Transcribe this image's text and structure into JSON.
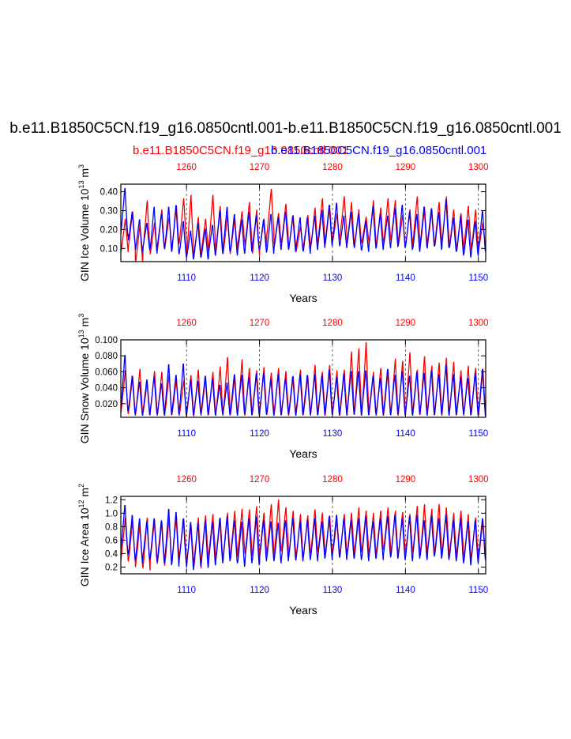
{
  "title": "b.e11.B1850C5CN.f19_g16.0850cntl.001-b.e11.B1850C5CN.f19_g16.0850cntl.001",
  "run_a_label": "b.e11.B1850C5CN.f19_g16.0850cntl.001",
  "run_b_label": "b.e11.B1850C5CN.f19_g16.0850cntl.001",
  "colors": {
    "run_a": "#ff0000",
    "run_b": "#0000ff",
    "axis": "#000000"
  },
  "chart_data": [
    {
      "type": "line",
      "title": "GIN Ice Volume",
      "ylabel": "GIN Ice Volume 10^13 m^3",
      "ylabel_base": "GIN Ice Volume 10",
      "ylabel_exp": "13",
      "ylabel_unit": " m",
      "ylabel_unit_exp": "3",
      "xlabel": "Years",
      "bottom_axis": {
        "range": [
          1101,
          1151
        ],
        "ticks": [
          1110,
          1120,
          1130,
          1140,
          1150
        ],
        "color": "#0000ff"
      },
      "top_axis": {
        "range": [
          1251,
          1301
        ],
        "ticks": [
          1260,
          1270,
          1280,
          1290,
          1300
        ],
        "color": "#ff0000"
      },
      "ylim": [
        0.03,
        0.44
      ],
      "yticks": [
        0.1,
        0.2,
        0.3,
        0.4
      ],
      "ytick_labels": [
        "0.10",
        "0.20",
        "0.30",
        "0.40"
      ],
      "series": [
        {
          "name": "b.e11.B1850C5CN.f19_g16.0850cntl.001 (years 1251-1301)",
          "color": "#ff0000",
          "annual_max": [
            0.26,
            0.3,
            0.23,
            0.36,
            0.24,
            0.31,
            0.27,
            0.33,
            0.37,
            0.39,
            0.27,
            0.26,
            0.39,
            0.33,
            0.28,
            0.26,
            0.3,
            0.35,
            0.31,
            0.26,
            0.42,
            0.29,
            0.34,
            0.28,
            0.22,
            0.28,
            0.32,
            0.37,
            0.33,
            0.29,
            0.38,
            0.35,
            0.31,
            0.27,
            0.36,
            0.32,
            0.37,
            0.36,
            0.28,
            0.31,
            0.38,
            0.32,
            0.31,
            0.35,
            0.38,
            0.31,
            0.29,
            0.33,
            0.31,
            0.24
          ],
          "annual_min": [
            0.08,
            0.1,
            0.02,
            0.08,
            0.06,
            0.09,
            0.1,
            0.1,
            0.13,
            0.06,
            0.05,
            0.08,
            0.1,
            0.07,
            0.07,
            0.08,
            0.12,
            0.11,
            0.06,
            0.09,
            0.17,
            0.12,
            0.13,
            0.1,
            0.08,
            0.11,
            0.1,
            0.14,
            0.12,
            0.13,
            0.16,
            0.12,
            0.11,
            0.13,
            0.12,
            0.11,
            0.13,
            0.14,
            0.11,
            0.11,
            0.13,
            0.1,
            0.11,
            0.12,
            0.13,
            0.1,
            0.09,
            0.11,
            0.08,
            0.09
          ]
        },
        {
          "name": "b.e11.B1850C5CN.f19_g16.0850cntl.001 (years 1101-1151)",
          "color": "#0000ff",
          "annual_max": [
            0.43,
            0.3,
            0.26,
            0.24,
            0.33,
            0.29,
            0.33,
            0.34,
            0.25,
            0.2,
            0.24,
            0.21,
            0.23,
            0.31,
            0.33,
            0.29,
            0.26,
            0.3,
            0.28,
            0.26,
            0.29,
            0.27,
            0.3,
            0.28,
            0.27,
            0.27,
            0.28,
            0.31,
            0.34,
            0.35,
            0.28,
            0.3,
            0.29,
            0.25,
            0.33,
            0.29,
            0.28,
            0.32,
            0.34,
            0.3,
            0.29,
            0.33,
            0.32,
            0.3,
            0.37,
            0.27,
            0.28,
            0.26,
            0.25,
            0.31
          ],
          "annual_min": [
            0.16,
            0.12,
            0.08,
            0.09,
            0.07,
            0.1,
            0.08,
            0.07,
            0.06,
            0.04,
            0.05,
            0.04,
            0.06,
            0.07,
            0.08,
            0.06,
            0.07,
            0.08,
            0.09,
            0.08,
            0.07,
            0.09,
            0.1,
            0.08,
            0.09,
            0.07,
            0.09,
            0.1,
            0.11,
            0.12,
            0.1,
            0.11,
            0.09,
            0.08,
            0.1,
            0.09,
            0.1,
            0.11,
            0.1,
            0.09,
            0.08,
            0.1,
            0.11,
            0.09,
            0.1,
            0.08,
            0.06,
            0.05,
            0.06,
            0.08
          ]
        }
      ]
    },
    {
      "type": "line",
      "title": "GIN Snow Volume",
      "ylabel": "GIN Snow Volume 10^13 m^3",
      "ylabel_base": "GIN Snow Volume 10",
      "ylabel_exp": "13",
      "ylabel_unit": " m",
      "ylabel_unit_exp": "3",
      "xlabel": "Years",
      "bottom_axis": {
        "range": [
          1101,
          1151
        ],
        "ticks": [
          1110,
          1120,
          1130,
          1140,
          1150
        ],
        "color": "#0000ff"
      },
      "top_axis": {
        "range": [
          1251,
          1301
        ],
        "ticks": [
          1260,
          1270,
          1280,
          1290,
          1300
        ],
        "color": "#ff0000"
      },
      "ylim": [
        0.003,
        0.1
      ],
      "yticks": [
        0.02,
        0.04,
        0.06,
        0.08,
        0.1
      ],
      "ytick_labels": [
        "0.020",
        "0.040",
        "0.060",
        "0.080",
        "0.100"
      ],
      "series": [
        {
          "name": "b.e11.B1850C5CN.f19_g16.0850cntl.001 (years 1251-1301)",
          "color": "#ff0000",
          "annual_max": [
            0.063,
            0.056,
            0.065,
            0.048,
            0.062,
            0.061,
            0.058,
            0.052,
            0.05,
            0.057,
            0.064,
            0.055,
            0.061,
            0.068,
            0.08,
            0.055,
            0.077,
            0.066,
            0.063,
            0.067,
            0.06,
            0.066,
            0.062,
            0.056,
            0.064,
            0.056,
            0.07,
            0.061,
            0.07,
            0.063,
            0.064,
            0.087,
            0.091,
            0.099,
            0.061,
            0.066,
            0.064,
            0.078,
            0.075,
            0.086,
            0.064,
            0.081,
            0.069,
            0.073,
            0.079,
            0.074,
            0.063,
            0.069,
            0.066,
            0.065
          ],
          "annual_min": [
            0.008,
            0.005,
            0.005,
            0.006,
            0.007,
            0.005,
            0.005,
            0.006,
            0.005,
            0.004,
            0.005,
            0.006,
            0.005,
            0.005,
            0.006,
            0.005,
            0.005,
            0.006,
            0.005,
            0.005,
            0.006,
            0.005,
            0.006,
            0.005,
            0.005,
            0.006,
            0.005,
            0.006,
            0.005,
            0.006,
            0.005,
            0.005,
            0.006,
            0.005,
            0.006,
            0.005,
            0.005,
            0.006,
            0.005,
            0.005,
            0.006,
            0.005,
            0.006,
            0.005,
            0.005,
            0.006,
            0.005,
            0.006,
            0.005,
            0.004
          ]
        },
        {
          "name": "b.e11.B1850C5CN.f19_g16.0850cntl.001 (years 1101-1151)",
          "color": "#0000ff",
          "annual_max": [
            0.084,
            0.057,
            0.049,
            0.052,
            0.056,
            0.047,
            0.072,
            0.058,
            0.073,
            0.052,
            0.05,
            0.057,
            0.053,
            0.045,
            0.048,
            0.059,
            0.058,
            0.055,
            0.06,
            0.061,
            0.052,
            0.059,
            0.053,
            0.056,
            0.059,
            0.058,
            0.059,
            0.058,
            0.065,
            0.055,
            0.06,
            0.063,
            0.063,
            0.064,
            0.057,
            0.054,
            0.066,
            0.058,
            0.063,
            0.057,
            0.062,
            0.061,
            0.064,
            0.059,
            0.072,
            0.059,
            0.055,
            0.054,
            0.061,
            0.066
          ],
          "annual_min": [
            0.01,
            0.006,
            0.005,
            0.005,
            0.006,
            0.005,
            0.005,
            0.006,
            0.005,
            0.005,
            0.006,
            0.005,
            0.005,
            0.006,
            0.005,
            0.005,
            0.006,
            0.005,
            0.005,
            0.006,
            0.005,
            0.005,
            0.006,
            0.005,
            0.005,
            0.006,
            0.005,
            0.005,
            0.006,
            0.005,
            0.005,
            0.006,
            0.005,
            0.005,
            0.006,
            0.005,
            0.005,
            0.006,
            0.005,
            0.005,
            0.006,
            0.005,
            0.005,
            0.006,
            0.005,
            0.005,
            0.006,
            0.005,
            0.005,
            0.004
          ]
        }
      ]
    },
    {
      "type": "line",
      "title": "GIN Ice Area",
      "ylabel": "GIN Ice Area 10^12 m^2",
      "ylabel_base": "GIN Ice Area 10",
      "ylabel_exp": "12",
      "ylabel_unit": " m",
      "ylabel_unit_exp": "2",
      "xlabel": "Years",
      "bottom_axis": {
        "range": [
          1101,
          1151
        ],
        "ticks": [
          1110,
          1120,
          1130,
          1140,
          1150
        ],
        "color": "#0000ff"
      },
      "top_axis": {
        "range": [
          1251,
          1301
        ],
        "ticks": [
          1260,
          1270,
          1280,
          1290,
          1300
        ],
        "color": "#ff0000"
      },
      "ylim": [
        0.1,
        1.25
      ],
      "yticks": [
        0.2,
        0.4,
        0.6,
        0.8,
        1.0,
        1.2
      ],
      "ytick_labels": [
        "0.2",
        "0.4",
        "0.6",
        "0.8",
        "1.0",
        "1.2"
      ],
      "series": [
        {
          "name": "b.e11.B1850C5CN.f19_g16.0850cntl.001 (years 1251-1301)",
          "color": "#ff0000",
          "annual_max": [
            0.95,
            0.9,
            0.85,
            0.95,
            0.92,
            0.88,
            0.95,
            0.97,
            0.93,
            0.85,
            0.95,
            0.98,
            1.0,
            0.95,
            1.02,
            1.05,
            1.08,
            1.07,
            1.12,
            1.02,
            1.15,
            1.22,
            1.1,
            1.05,
            1.0,
            0.98,
            1.07,
            1.02,
            0.98,
            0.92,
            1.0,
            1.02,
            1.1,
            1.05,
            1.02,
            1.05,
            1.1,
            1.05,
            1.03,
            1.0,
            1.12,
            1.15,
            1.08,
            1.15,
            1.1,
            1.02,
            1.05,
            1.0,
            0.95,
            0.92
          ],
          "annual_min": [
            0.3,
            0.25,
            0.2,
            0.15,
            0.28,
            0.25,
            0.22,
            0.3,
            0.35,
            0.25,
            0.18,
            0.3,
            0.35,
            0.28,
            0.3,
            0.35,
            0.4,
            0.38,
            0.35,
            0.4,
            0.38,
            0.35,
            0.45,
            0.35,
            0.3,
            0.35,
            0.4,
            0.42,
            0.35,
            0.38,
            0.35,
            0.4,
            0.38,
            0.42,
            0.35,
            0.4,
            0.45,
            0.35,
            0.38,
            0.42,
            0.4,
            0.35,
            0.42,
            0.38,
            0.4,
            0.35,
            0.38,
            0.3,
            0.32,
            0.3
          ]
        },
        {
          "name": "b.e11.B1850C5CN.f19_g16.0850cntl.001 (years 1101-1151)",
          "color": "#0000ff",
          "annual_max": [
            1.15,
            1.0,
            0.95,
            0.9,
            0.95,
            0.92,
            1.1,
            1.05,
            0.95,
            0.9,
            0.88,
            0.92,
            0.9,
            0.95,
            0.98,
            0.92,
            0.9,
            0.95,
            0.98,
            0.92,
            0.9,
            0.88,
            0.92,
            0.95,
            0.9,
            0.92,
            0.95,
            0.9,
            0.98,
            1.0,
            0.95,
            0.92,
            0.95,
            0.98,
            0.9,
            0.95,
            0.98,
            1.0,
            0.95,
            0.98,
            1.0,
            0.92,
            0.98,
            0.95,
            1.0,
            0.92,
            0.95,
            0.9,
            0.92,
            0.95
          ],
          "annual_min": [
            0.4,
            0.3,
            0.25,
            0.3,
            0.28,
            0.25,
            0.22,
            0.2,
            0.25,
            0.15,
            0.2,
            0.18,
            0.22,
            0.25,
            0.28,
            0.25,
            0.2,
            0.25,
            0.22,
            0.28,
            0.3,
            0.25,
            0.28,
            0.3,
            0.28,
            0.3,
            0.28,
            0.32,
            0.3,
            0.35,
            0.3,
            0.32,
            0.3,
            0.28,
            0.32,
            0.3,
            0.35,
            0.32,
            0.3,
            0.28,
            0.32,
            0.3,
            0.35,
            0.32,
            0.3,
            0.28,
            0.25,
            0.22,
            0.25,
            0.3
          ]
        }
      ]
    }
  ]
}
